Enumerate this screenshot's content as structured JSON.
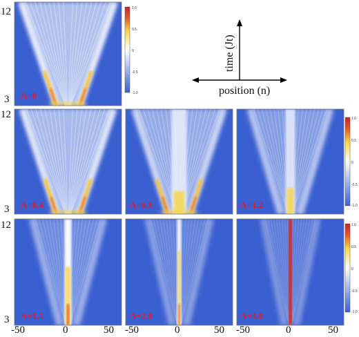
{
  "chart_data": {
    "type": "heatmap",
    "x": {
      "label": "position (n)",
      "range": [
        -60,
        60
      ],
      "ticks": [
        "-50",
        "0",
        "50"
      ]
    },
    "y": {
      "label": "time (Jt)",
      "range": [
        3,
        12
      ],
      "ticks": [
        "12",
        "3"
      ]
    },
    "colorbar": {
      "range": [
        -1,
        1
      ],
      "ticks": [
        "1.0",
        "0.5",
        "0",
        "-0.5",
        "-1.0"
      ],
      "colors": [
        "#3a5fd0",
        "#ffffff",
        "#f7d64a",
        "#e8602a",
        "#c8202c"
      ]
    },
    "panels": [
      {
        "label": "Λ=0",
        "lambda": 0
      },
      {
        "label": "Λ=0.4",
        "lambda": 0.4
      },
      {
        "label": "Λ=0.9",
        "lambda": 0.9
      },
      {
        "label": "Λ=1.2",
        "lambda": 1.2
      },
      {
        "label": "Λ=1.5",
        "lambda": 1.5
      },
      {
        "label": "Λ=2.0",
        "lambda": 2.0
      },
      {
        "label": "Λ=4.0",
        "lambda": 4.0
      }
    ],
    "background_color": "#3a5fd0",
    "grid": false
  }
}
